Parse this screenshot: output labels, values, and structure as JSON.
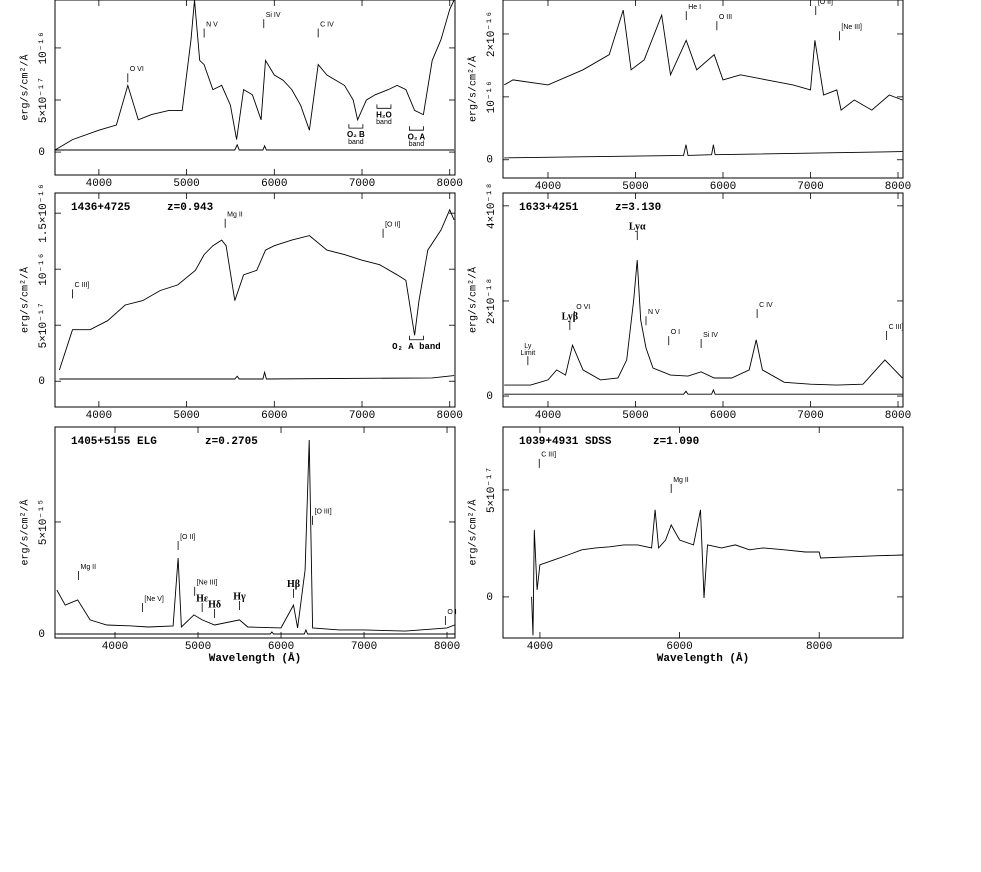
{
  "chart_data": [
    {
      "type": "line",
      "ylabel": "erg/s/cm²/Å",
      "xlim": [
        3500,
        8060
      ],
      "ylim": [
        -2.2e-17,
        1.46e-16
      ],
      "xticks": [
        4000,
        5000,
        6000,
        7000,
        8000
      ],
      "yticks": [
        0,
        {
          "value": 5e-17,
          "label": "5×10⁻¹⁷"
        },
        {
          "value": 1e-16,
          "label": "10⁻¹⁶"
        }
      ],
      "series": [
        {
          "color": "#000000",
          "x": [
            3500,
            3700,
            4000,
            4200,
            4330,
            4450,
            4600,
            4800,
            4950,
            5050,
            5090,
            5150,
            5200,
            5300,
            5400,
            5500,
            5570,
            5650,
            5750,
            5850,
            5900,
            6000,
            6100,
            6200,
            6300,
            6400,
            6500,
            6600,
            6800,
            6900,
            6950,
            7050,
            7150,
            7300,
            7400,
            7500,
            7600,
            7700,
            7800,
            7900,
            8000,
            8050
          ],
          "values": [
            2e-18,
            1.2e-17,
            2.1e-17,
            2.6e-17,
            6.4e-17,
            3.1e-17,
            3.6e-17,
            4e-17,
            4e-17,
            1.08e-16,
            1.46e-16,
            8.8e-17,
            8.4e-17,
            6e-17,
            6.4e-17,
            4.5e-17,
            1.2e-17,
            6e-17,
            5.5e-17,
            3.1e-17,
            8.8e-17,
            7.4e-17,
            6.9e-17,
            6e-17,
            4.5e-17,
            2.1e-17,
            8.4e-17,
            7.4e-17,
            6.4e-17,
            5e-17,
            3.1e-17,
            5e-17,
            5.5e-17,
            6e-17,
            6.4e-17,
            6e-17,
            4e-17,
            3.6e-17,
            8.8e-17,
            1.08e-16,
            1.37e-16,
            1.46e-16
          ]
        },
        {
          "color": "#000000",
          "x": [
            3500,
            5550,
            5577,
            5600,
            5870,
            5890,
            5910,
            8050
          ],
          "values": [
            2e-18,
            2e-18,
            7e-18,
            2e-18,
            2e-18,
            6e-18,
            2e-18,
            2e-18
          ]
        }
      ],
      "annotations": [
        {
          "text": "O VI",
          "x": 4330,
          "y": 6.7e-17
        },
        {
          "text": "N V",
          "x": 5200,
          "y": 1.1e-16
        },
        {
          "text": "Si IV",
          "x": 5880,
          "y": 1.19e-16
        },
        {
          "text": "C IV",
          "x": 6500,
          "y": 1.1e-16
        },
        {
          "text": "O₂ B",
          "sub": "band",
          "x": 6930,
          "y": 2.3e-17,
          "style": "bracket"
        },
        {
          "text": "H₂O",
          "sub": "band",
          "x": 7250,
          "y": 4.2e-17,
          "style": "bracket"
        },
        {
          "text": "O₂ A",
          "sub": "band",
          "x": 7620,
          "y": 2.1e-17,
          "style": "bracket"
        }
      ]
    },
    {
      "type": "line",
      "ylabel": "erg/s/cm²/Å",
      "xlim": [
        3486,
        8057
      ],
      "ylim": [
        -2.9e-17,
        2.54e-16
      ],
      "xticks": [
        4000,
        5000,
        6000,
        7000,
        8000
      ],
      "yticks": [
        0,
        {
          "value": 1e-16,
          "label": "10⁻¹⁶"
        },
        {
          "value": 2e-16,
          "label": "2×10⁻¹⁶"
        }
      ],
      "series": [
        {
          "color": "#000000",
          "x": [
            3500,
            3600,
            4000,
            4400,
            4700,
            4860,
            4950,
            5100,
            5300,
            5400,
            5580,
            5700,
            5900,
            6000,
            6200,
            6500,
            6800,
            7000,
            7050,
            7150,
            7300,
            7350,
            7500,
            7700,
            7900,
            8050
          ],
          "values": [
            1.19e-16,
            1.27e-16,
            1.19e-16,
            1.43e-16,
            1.67e-16,
            2.38e-16,
            1.43e-16,
            1.59e-16,
            2.3e-16,
            1.35e-16,
            1.9e-16,
            1.43e-16,
            1.67e-16,
            1.27e-16,
            1.35e-16,
            1.27e-16,
            1.19e-16,
            1.11e-16,
            1.9e-16,
            1.03e-16,
            1.11e-16,
            7.9e-17,
            9.5e-17,
            7.9e-17,
            1.03e-16,
            9.5e-17
          ]
        },
        {
          "color": "#000000",
          "x": [
            3500,
            5550,
            5577,
            5600,
            5870,
            5890,
            5910,
            8050
          ],
          "values": [
            3e-18,
            7e-18,
            2.4e-17,
            7e-18,
            8e-18,
            2.4e-17,
            8e-18,
            1.3e-17
          ]
        }
      ],
      "annotations": [
        {
          "text": "He I",
          "x": 5580,
          "y": 2.22e-16
        },
        {
          "text": "O III",
          "x": 5930,
          "y": 2.06e-16
        },
        {
          "text": "[O II]",
          "x": 7060,
          "y": 2.3e-16
        },
        {
          "text": "[Ne III]",
          "x": 7330,
          "y": 1.9e-16
        }
      ]
    },
    {
      "type": "line",
      "label": "1436+4725",
      "redshift": "z=0.943",
      "ylabel": "erg/s/cm²/Å",
      "xlim": [
        3500,
        8060
      ],
      "ylim": [
        -2.3e-17,
        1.68e-16
      ],
      "xticks": [
        4000,
        5000,
        6000,
        7000,
        8000
      ],
      "yticks": [
        0,
        {
          "value": 5e-17,
          "label": "5×10⁻¹⁷"
        },
        {
          "value": 1e-16,
          "label": "10⁻¹⁶"
        },
        {
          "value": 1.5e-16,
          "label": "1.5×10⁻¹⁶"
        }
      ],
      "series": [
        {
          "color": "#000000",
          "x": [
            3550,
            3700,
            3900,
            4100,
            4300,
            4500,
            4700,
            4900,
            5100,
            5200,
            5300,
            5400,
            5450,
            5550,
            5650,
            5800,
            5900,
            6000,
            6200,
            6400,
            6600,
            6800,
            7000,
            7200,
            7400,
            7500,
            7600,
            7650,
            7750,
            7900,
            8000,
            8050
          ],
          "values": [
            1e-17,
            4.6e-17,
            4.6e-17,
            5.4e-17,
            6.8e-17,
            7.2e-17,
            8.1e-17,
            8.6e-17,
            9.9e-17,
            1.13e-16,
            1.21e-16,
            1.26e-16,
            1.21e-16,
            7.2e-17,
            9.5e-17,
            9.9e-17,
            1.17e-16,
            1.21e-16,
            1.26e-16,
            1.3e-16,
            1.17e-16,
            1.13e-16,
            1.08e-16,
            1.04e-16,
            9.5e-17,
            9e-17,
            4.1e-17,
            7.2e-17,
            1.17e-16,
            1.35e-16,
            1.53e-16,
            1.44e-16
          ]
        },
        {
          "color": "#000000",
          "x": [
            3550,
            5550,
            5577,
            5600,
            5870,
            5890,
            5910,
            7800,
            8050
          ],
          "values": [
            2e-18,
            2e-18,
            4.5e-18,
            2e-18,
            2e-18,
            8e-18,
            2e-18,
            3e-18,
            5e-18
          ]
        }
      ],
      "annotations": [
        {
          "text": "C III]",
          "x": 3700,
          "y": 7.4e-17
        },
        {
          "text": "Mg II",
          "x": 5440,
          "y": 1.37e-16
        },
        {
          "text": "[O II]",
          "x": 7240,
          "y": 1.28e-16
        },
        {
          "text": "O₂ A band",
          "x": 7620,
          "y": 3.7e-17,
          "style": "bracket"
        }
      ]
    },
    {
      "type": "line",
      "label": "1633+4251",
      "redshift": "z=3.130",
      "ylabel": "erg/s/cm²/Å",
      "xlim": [
        3486,
        8057
      ],
      "ylim": [
        -2.3e-19,
        4.27e-18
      ],
      "xticks": [
        4000,
        5000,
        6000,
        7000,
        8000
      ],
      "yticks": [
        0,
        {
          "value": 2e-18,
          "label": "2×10⁻¹⁸"
        },
        {
          "value": 4e-18,
          "label": "4×10⁻¹⁸"
        }
      ],
      "series": [
        {
          "color": "#000000",
          "x": [
            3500,
            3800,
            4000,
            4100,
            4200,
            4280,
            4400,
            4600,
            4800,
            4900,
            4980,
            5020,
            5060,
            5120,
            5200,
            5400,
            5600,
            5750,
            5900,
            6100,
            6300,
            6380,
            6450,
            6700,
            7000,
            7300,
            7600,
            7850,
            8050
          ],
          "values": [
            2.3e-19,
            2.3e-19,
            3.4e-19,
            5.5e-19,
            4.4e-19,
            1.07e-18,
            5.5e-19,
            3.4e-19,
            3.8e-19,
            7.6e-19,
            2.02e-18,
            2.86e-18,
            1.6e-18,
            1.01e-18,
            5.9e-19,
            4.4e-19,
            4.2e-19,
            5.1e-19,
            3.8e-19,
            3.8e-19,
            5.5e-19,
            1.18e-18,
            5.5e-19,
            2.9e-19,
            2.5e-19,
            2.3e-19,
            2.5e-19,
            7.6e-19,
            3.8e-19
          ]
        },
        {
          "color": "#000000",
          "x": [
            3500,
            5550,
            5577,
            5600,
            5870,
            5890,
            5910,
            8050
          ],
          "values": [
            4e-20,
            4e-20,
            1e-19,
            4e-20,
            4e-20,
            1.3e-19,
            4e-20,
            4e-20
          ]
        }
      ],
      "annotations": [
        {
          "text": "Lyα",
          "x": 5020,
          "y": 3.28e-18
        },
        {
          "text": "Lyβ",
          "x": 4250,
          "y": 1.39e-18
        },
        {
          "text": "O VI",
          "x": 4300,
          "y": 1.6e-18
        },
        {
          "text": "N V",
          "x": 5120,
          "y": 1.49e-18
        },
        {
          "text": "O I",
          "x": 5380,
          "y": 1.07e-18
        },
        {
          "text": "Si IV",
          "x": 5750,
          "y": 1.01e-18
        },
        {
          "text": "C IV",
          "x": 6390,
          "y": 1.64e-18
        },
        {
          "text": "C III]",
          "x": 7870,
          "y": 1.18e-18
        },
        {
          "text": "Ly",
          "sub": "Limit",
          "x": 3770,
          "y": 6.5e-19
        }
      ]
    },
    {
      "type": "line",
      "label": "1405+5155 ELG",
      "redshift": "z=0.2705",
      "ylabel": "erg/s/cm²/Å",
      "xlabel": "Wavelength (Å)",
      "xlim": [
        3277,
        8096
      ],
      "ylim": [
        -1.8e-16,
        9.24e-15
      ],
      "xticks": [
        4000,
        5000,
        6000,
        7000,
        8000
      ],
      "yticks": [
        0,
        {
          "value": 5e-15,
          "label": "5×10⁻¹⁵"
        }
      ],
      "series": [
        {
          "color": "#000000",
          "x": [
            3300,
            3400,
            3550,
            3700,
            3900,
            4200,
            4400,
            4700,
            4760,
            4800,
            4950,
            5050,
            5200,
            5500,
            5600,
            6000,
            6150,
            6200,
            6290,
            6340,
            6380,
            6700,
            7000,
            7500,
            8000,
            8090
          ],
          "values": [
            1.96e-15,
            1.29e-15,
            1.52e-15,
            6.3e-16,
            4e-16,
            3.6e-16,
            3.1e-16,
            3.6e-16,
            3.39e-15,
            3.1e-16,
            8.5e-16,
            6.3e-16,
            4e-16,
            6.3e-16,
            3.1e-16,
            2.7e-16,
            1.29e-15,
            2.7e-16,
            2.86e-15,
            8.66e-15,
            2.7e-16,
            1.8e-16,
            1.8e-16,
            1.3e-16,
            2.7e-16,
            4e-16
          ]
        },
        {
          "color": "#000000",
          "x": [
            3300,
            5870,
            5890,
            5910,
            6280,
            6300,
            6320,
            8090
          ],
          "values": [
            0,
            0,
            9e-17,
            0,
            0,
            1.8e-16,
            0,
            0
          ]
        }
      ],
      "annotations": [
        {
          "text": "Mg II",
          "x": 3560,
          "y": 2.41e-15
        },
        {
          "text": "[Ne V]",
          "x": 4330,
          "y": 9.8e-16
        },
        {
          "text": "[O II]",
          "x": 4760,
          "y": 3.75e-15
        },
        {
          "text": "[Ne III]",
          "x": 4960,
          "y": 1.7e-15
        },
        {
          "text": "Hε",
          "x": 5050,
          "y": 9.8e-16
        },
        {
          "text": "Hδ",
          "x": 5200,
          "y": 7.1e-16
        },
        {
          "text": "Hγ",
          "x": 5500,
          "y": 1.07e-15
        },
        {
          "text": "Hβ",
          "x": 6150,
          "y": 1.61e-15
        },
        {
          "text": "[O III]",
          "x": 6380,
          "y": 4.87e-15
        },
        {
          "text": "O I",
          "x": 7980,
          "y": 4e-16
        }
      ]
    },
    {
      "type": "line",
      "label": "1039+4931 SDSS",
      "redshift": "z=1.090",
      "ylabel": "erg/s/cm²/Å",
      "xlabel": "Wavelength (Å)",
      "xlim": [
        3471,
        9200
      ],
      "ylim": [
        -1.92e-17,
        7.94e-17
      ],
      "xticks": [
        4000,
        6000,
        8000
      ],
      "yticks": [
        0,
        {
          "value": 5e-17,
          "label": "5×10⁻¹⁷"
        }
      ],
      "series": [
        {
          "color": "#000000",
          "x": [
            3880,
            3900,
            3920,
            3960,
            4000,
            4200,
            4400,
            4600,
            4800,
            5000,
            5200,
            5400,
            5600,
            5650,
            5700,
            5800,
            5880,
            6000,
            6200,
            6300,
            6350,
            6400,
            6600,
            6800,
            7000,
            7200,
            7500,
            7800,
            8000,
            8020,
            8400,
            8800,
            9200
          ],
          "values": [
            0,
            -1.8e-17,
            3.13e-17,
            3.3e-18,
            1.5e-17,
            1.73e-17,
            1.96e-17,
            2.2e-17,
            2.29e-17,
            2.34e-17,
            2.43e-17,
            2.43e-17,
            2.29e-17,
            4.07e-17,
            2.29e-17,
            2.66e-17,
            3.36e-17,
            2.66e-17,
            2.43e-17,
            4.07e-17,
            -5e-19,
            2.43e-17,
            2.29e-17,
            2.43e-17,
            2.2e-17,
            2.29e-17,
            2.2e-17,
            2.1e-17,
            2.1e-17,
            1.82e-17,
            1.87e-17,
            1.92e-17,
            1.96e-17
          ]
        }
      ],
      "annotations": [
        {
          "text": "C III]",
          "x": 3990,
          "y": 6.03e-17
        },
        {
          "text": "Mg II",
          "x": 5880,
          "y": 4.86e-17
        }
      ]
    }
  ]
}
